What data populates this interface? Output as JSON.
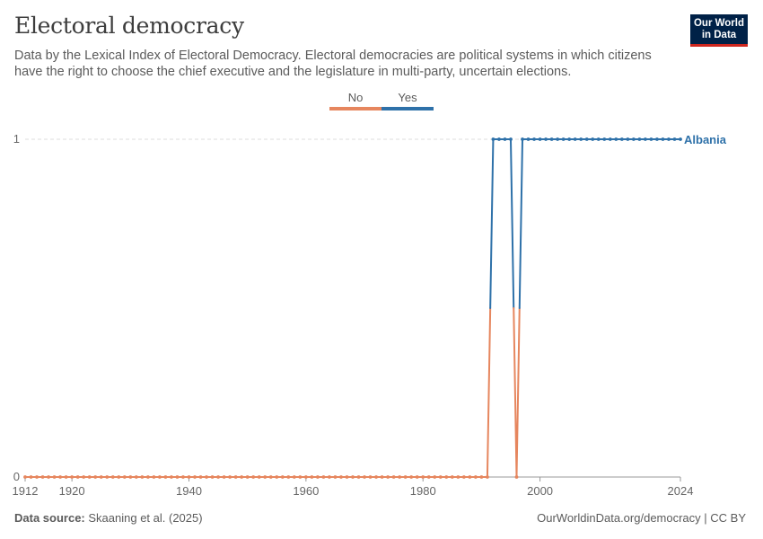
{
  "header": {
    "title": "Electoral democracy",
    "subtitle": "Data by the Lexical Index of Electoral Democracy. Electoral democracies are political systems in which citizens have the right to choose the chief executive and the legislature in multi-party, uncertain elections.",
    "logo_line1": "Our World",
    "logo_line2": "in Data"
  },
  "legend": [
    {
      "label": "No",
      "color": "#e6865e"
    },
    {
      "label": "Yes",
      "color": "#2e71a9"
    }
  ],
  "footer": {
    "source_label": "Data source:",
    "source_text": "Skaaning et al. (2025)",
    "url_text": "OurWorldinData.org/democracy | CC BY"
  },
  "colors": {
    "no": "#e6865e",
    "yes": "#2e71a9",
    "axis": "#999999",
    "grid": "#dddddd",
    "tick_text": "#666666"
  },
  "chart_data": {
    "type": "line",
    "title": "Electoral democracy",
    "xlabel": "",
    "ylabel": "",
    "xlim": [
      1912,
      2024
    ],
    "ylim": [
      0,
      1
    ],
    "x_ticks": [
      1912,
      1920,
      1940,
      1960,
      1980,
      2000,
      2024
    ],
    "y_ticks": [
      0,
      1
    ],
    "grid": "horizontal dashed",
    "legend_position": "top-center",
    "series": [
      {
        "name": "Albania",
        "start_year": 1912,
        "end_year": 2024,
        "values": [
          0,
          0,
          0,
          0,
          0,
          0,
          0,
          0,
          0,
          0,
          0,
          0,
          0,
          0,
          0,
          0,
          0,
          0,
          0,
          0,
          0,
          0,
          0,
          0,
          0,
          0,
          0,
          0,
          0,
          0,
          0,
          0,
          0,
          0,
          0,
          0,
          0,
          0,
          0,
          0,
          0,
          0,
          0,
          0,
          0,
          0,
          0,
          0,
          0,
          0,
          0,
          0,
          0,
          0,
          0,
          0,
          0,
          0,
          0,
          0,
          0,
          0,
          0,
          0,
          0,
          0,
          0,
          0,
          0,
          0,
          0,
          0,
          0,
          0,
          0,
          0,
          0,
          0,
          0,
          0,
          1,
          1,
          1,
          1,
          0,
          1,
          1,
          1,
          1,
          1,
          1,
          1,
          1,
          1,
          1,
          1,
          1,
          1,
          1,
          1,
          1,
          1,
          1,
          1,
          1,
          1,
          1,
          1,
          1,
          1,
          1,
          1,
          1
        ]
      }
    ]
  }
}
